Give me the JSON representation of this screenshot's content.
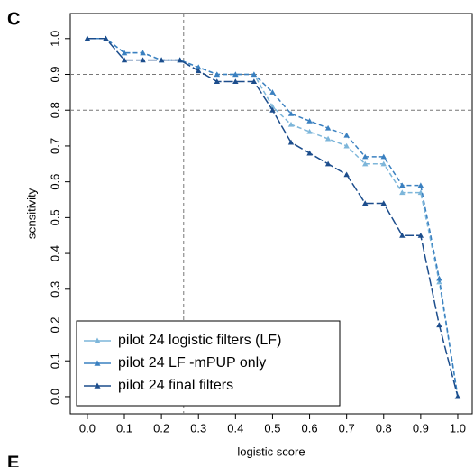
{
  "chart_data": {
    "type": "line",
    "panel_label": "C",
    "next_panel_label": "E",
    "xlabel": "logistic score",
    "ylabel": "sensitivity",
    "x": [
      0,
      0.05,
      0.1,
      0.15,
      0.2,
      0.25,
      0.3,
      0.35,
      0.4,
      0.45,
      0.5,
      0.55,
      0.6,
      0.65,
      0.7,
      0.75,
      0.8,
      0.85,
      0.9,
      0.95,
      1
    ],
    "series": [
      {
        "name": "pilot 24 logistic filters (LF)",
        "color": "#7db6da",
        "values": [
          1.0,
          1.0,
          0.96,
          0.96,
          0.94,
          0.94,
          0.92,
          0.9,
          0.9,
          0.9,
          0.81,
          0.76,
          0.74,
          0.72,
          0.7,
          0.65,
          0.65,
          0.57,
          0.57,
          0.32,
          0.0
        ]
      },
      {
        "name": "pilot 24 LF -mPUP only",
        "color": "#3a80c0",
        "values": [
          1.0,
          1.0,
          0.96,
          0.96,
          0.94,
          0.94,
          0.92,
          0.9,
          0.9,
          0.9,
          0.85,
          0.79,
          0.77,
          0.75,
          0.73,
          0.67,
          0.67,
          0.59,
          0.59,
          0.33,
          0.0
        ]
      },
      {
        "name": "pilot 24 final filters",
        "color": "#1c4d8c",
        "values": [
          1.0,
          1.0,
          0.94,
          0.94,
          0.94,
          0.94,
          0.91,
          0.88,
          0.88,
          0.88,
          0.8,
          0.71,
          0.68,
          0.65,
          0.62,
          0.54,
          0.54,
          0.45,
          0.45,
          0.2,
          0.0
        ]
      }
    ],
    "xlim": [
      -0.046,
      1.039
    ],
    "ylim": [
      -0.048,
      1.07
    ],
    "xticks": [
      {
        "value": 0,
        "label": "0.0"
      },
      0.1,
      0.2,
      0.3,
      0.4,
      0.5,
      0.6,
      0.7,
      0.8,
      0.9,
      {
        "value": 1,
        "label": "1.0"
      }
    ],
    "yticks": [
      {
        "value": 0,
        "label": "0.0"
      },
      0.1,
      0.2,
      0.3,
      0.4,
      0.5,
      0.6,
      0.7,
      0.8,
      0.9,
      {
        "value": 1,
        "label": "1.0"
      }
    ],
    "hlines": [
      0.9,
      0.8
    ],
    "vlines": [
      0.26
    ],
    "legend": "lower left"
  }
}
